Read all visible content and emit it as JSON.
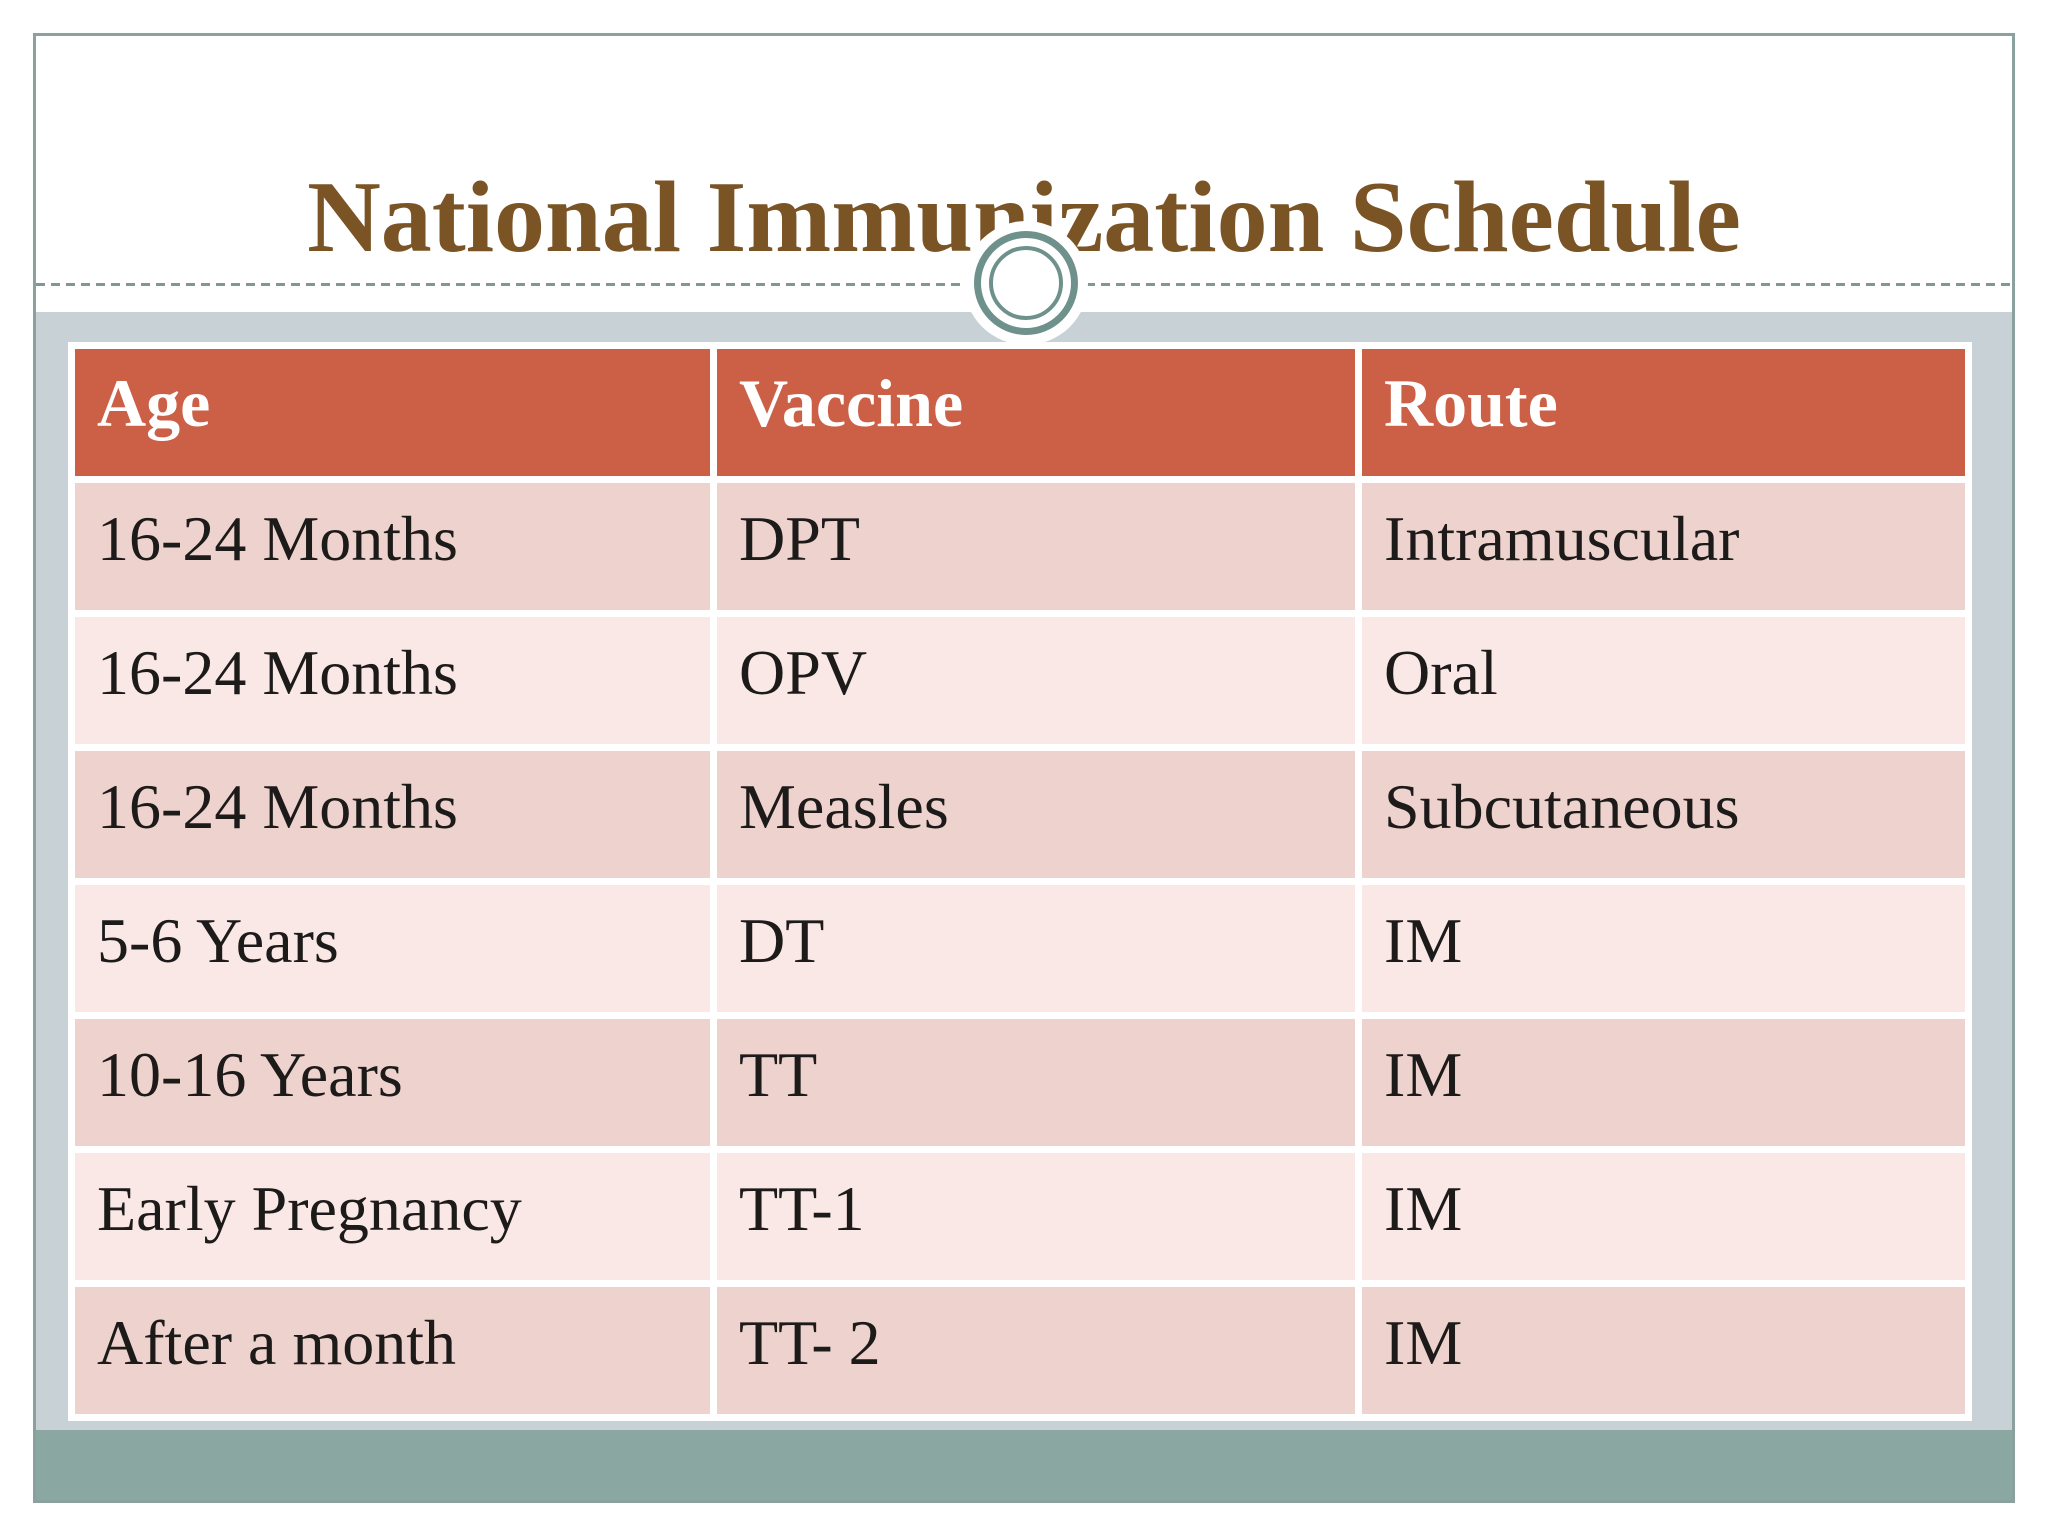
{
  "slide": {
    "title": "National Immunization Schedule"
  },
  "table": {
    "headers": [
      "Age",
      "Vaccine",
      "Route"
    ],
    "rows": [
      [
        "16-24 Months",
        "DPT",
        "Intramuscular"
      ],
      [
        "16-24 Months",
        "OPV",
        "Oral"
      ],
      [
        "16-24 Months",
        "Measles",
        "Subcutaneous"
      ],
      [
        "5-6 Years",
        "DT",
        "IM"
      ],
      [
        "10-16 Years",
        "TT",
        "IM"
      ],
      [
        "Early Pregnancy",
        "TT-1",
        "IM"
      ],
      [
        "After a month",
        "TT- 2",
        "IM"
      ]
    ]
  },
  "colors": {
    "title_text": "#7b5426",
    "frame_border": "#8ba19e",
    "content_background": "#c8d1d5",
    "footer_band": "#8aa7a2",
    "header_fill": "#cc6047",
    "row_dark": "#eed2cd",
    "row_light": "#f9e8e6",
    "dashed_line": "#7f9894",
    "ring": "#6f918c"
  }
}
